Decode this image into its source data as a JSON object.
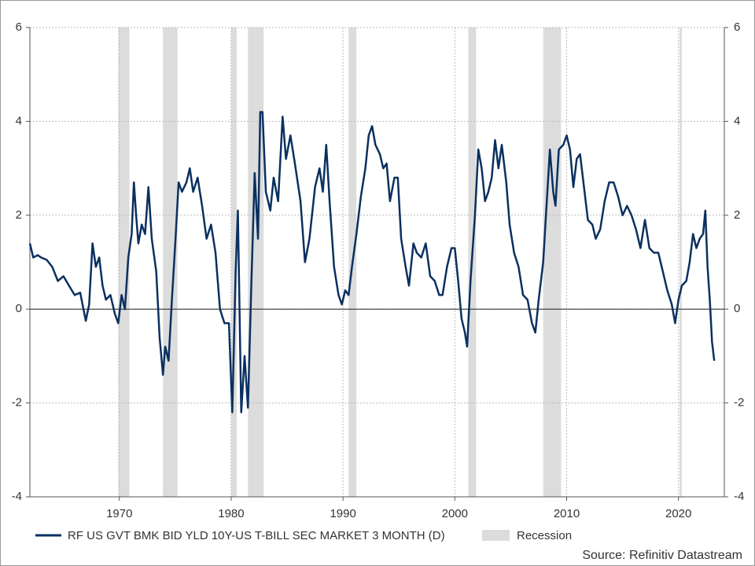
{
  "chart_data": {
    "type": "line",
    "x": [
      1962.0,
      1962.3,
      1962.7,
      1963.0,
      1963.5,
      1964.0,
      1964.5,
      1965.0,
      1965.5,
      1966.0,
      1966.5,
      1967.0,
      1967.3,
      1967.6,
      1967.9,
      1968.2,
      1968.5,
      1968.8,
      1969.2,
      1969.6,
      1969.9,
      1970.2,
      1970.5,
      1970.8,
      1971.1,
      1971.3,
      1971.5,
      1971.7,
      1972.0,
      1972.3,
      1972.6,
      1972.9,
      1973.3,
      1973.6,
      1973.9,
      1974.1,
      1974.4,
      1974.7,
      1975.0,
      1975.3,
      1975.6,
      1976.0,
      1976.3,
      1976.6,
      1977.0,
      1977.4,
      1977.8,
      1978.2,
      1978.6,
      1979.0,
      1979.4,
      1979.8,
      1980.1,
      1980.4,
      1980.6,
      1980.9,
      1981.2,
      1981.5,
      1981.8,
      1982.1,
      1982.4,
      1982.6,
      1982.8,
      1983.1,
      1983.5,
      1983.8,
      1984.2,
      1984.6,
      1984.9,
      1985.3,
      1985.7,
      1986.2,
      1986.6,
      1987.0,
      1987.5,
      1987.9,
      1988.2,
      1988.5,
      1988.8,
      1989.2,
      1989.6,
      1989.9,
      1990.2,
      1990.5,
      1990.8,
      1991.2,
      1991.6,
      1992.0,
      1992.3,
      1992.6,
      1992.9,
      1993.3,
      1993.6,
      1993.9,
      1994.2,
      1994.6,
      1994.9,
      1995.2,
      1995.6,
      1995.9,
      1996.3,
      1996.6,
      1997.0,
      1997.4,
      1997.8,
      1998.2,
      1998.6,
      1998.9,
      1999.3,
      1999.7,
      2000.0,
      2000.3,
      2000.6,
      2000.9,
      2001.1,
      2001.4,
      2001.8,
      2002.1,
      2002.4,
      2002.7,
      2003.0,
      2003.3,
      2003.6,
      2003.9,
      2004.2,
      2004.6,
      2004.9,
      2005.3,
      2005.7,
      2006.1,
      2006.5,
      2006.9,
      2007.2,
      2007.5,
      2007.9,
      2008.2,
      2008.5,
      2008.8,
      2009.0,
      2009.3,
      2009.7,
      2010.0,
      2010.3,
      2010.6,
      2010.9,
      2011.2,
      2011.6,
      2011.9,
      2012.3,
      2012.6,
      2013.0,
      2013.4,
      2013.8,
      2014.2,
      2014.6,
      2015.0,
      2015.4,
      2015.8,
      2016.2,
      2016.6,
      2017.0,
      2017.4,
      2017.8,
      2018.2,
      2018.6,
      2019.0,
      2019.4,
      2019.7,
      2020.0,
      2020.3,
      2020.7,
      2021.0,
      2021.3,
      2021.6,
      2021.9,
      2022.2,
      2022.4,
      2022.6,
      2022.8,
      2023.0,
      2023.2
    ],
    "series": [
      {
        "name": "RF US GVT BMK BID YLD 10Y-US T-BILL SEC MARKET 3 MONTH (D)",
        "color": "#0b3060",
        "values": [
          1.4,
          1.1,
          1.15,
          1.1,
          1.05,
          0.9,
          0.6,
          0.7,
          0.5,
          0.3,
          0.35,
          -0.25,
          0.1,
          1.4,
          0.9,
          1.1,
          0.5,
          0.2,
          0.3,
          -0.1,
          -0.3,
          0.3,
          0.0,
          1.1,
          1.6,
          2.7,
          2.0,
          1.4,
          1.8,
          1.6,
          2.6,
          1.5,
          0.8,
          -0.6,
          -1.4,
          -0.8,
          -1.1,
          0.2,
          1.4,
          2.7,
          2.5,
          2.7,
          3.0,
          2.5,
          2.8,
          2.2,
          1.5,
          1.8,
          1.2,
          0.0,
          -0.3,
          -0.3,
          -2.2,
          0.8,
          2.1,
          -2.2,
          -1.0,
          -2.1,
          0.5,
          2.9,
          1.5,
          4.2,
          4.2,
          2.5,
          2.1,
          2.8,
          2.3,
          4.1,
          3.2,
          3.7,
          3.1,
          2.3,
          1.0,
          1.5,
          2.6,
          3.0,
          2.5,
          3.5,
          2.3,
          0.9,
          0.3,
          0.1,
          0.4,
          0.3,
          0.9,
          1.6,
          2.4,
          3.0,
          3.7,
          3.9,
          3.5,
          3.3,
          3.0,
          3.1,
          2.3,
          2.8,
          2.8,
          1.5,
          0.9,
          0.5,
          1.4,
          1.2,
          1.1,
          1.4,
          0.7,
          0.6,
          0.3,
          0.3,
          0.9,
          1.3,
          1.3,
          0.6,
          -0.2,
          -0.5,
          -0.8,
          0.6,
          2.0,
          3.4,
          3.0,
          2.3,
          2.5,
          2.8,
          3.6,
          3.0,
          3.5,
          2.7,
          1.8,
          1.2,
          0.9,
          0.3,
          0.2,
          -0.3,
          -0.5,
          0.2,
          1.0,
          2.2,
          3.4,
          2.5,
          2.2,
          3.4,
          3.5,
          3.7,
          3.4,
          2.6,
          3.2,
          3.3,
          2.5,
          1.9,
          1.8,
          1.5,
          1.7,
          2.3,
          2.7,
          2.7,
          2.4,
          2.0,
          2.2,
          2.0,
          1.7,
          1.3,
          1.9,
          1.3,
          1.2,
          1.2,
          0.8,
          0.4,
          0.1,
          -0.3,
          0.2,
          0.5,
          0.6,
          1.0,
          1.6,
          1.3,
          1.5,
          1.6,
          2.1,
          0.9,
          0.2,
          -0.7,
          -1.1
        ]
      }
    ],
    "recessions": {
      "name": "Recession",
      "color": "#dcdcdc",
      "spans": [
        [
          1969.9,
          1970.9
        ],
        [
          1973.9,
          1975.2
        ],
        [
          1980.0,
          1980.5
        ],
        [
          1981.5,
          1982.9
        ],
        [
          1990.5,
          1991.2
        ],
        [
          2001.2,
          2001.9
        ],
        [
          2007.9,
          2009.5
        ],
        [
          2020.1,
          2020.3
        ]
      ]
    },
    "xlim": [
      1962.0,
      2024.1
    ],
    "xticks": [
      1970,
      1980,
      1990,
      2000,
      2010,
      2020
    ],
    "ylim": [
      -4,
      6
    ],
    "yticks": [
      -4,
      -2,
      0,
      2,
      4,
      6
    ],
    "y2lim": [
      -4,
      6
    ],
    "y2ticks": [
      -4,
      -2,
      0,
      2,
      4,
      6
    ],
    "grid": true,
    "source": "Source: Refinitiv Datastream"
  }
}
